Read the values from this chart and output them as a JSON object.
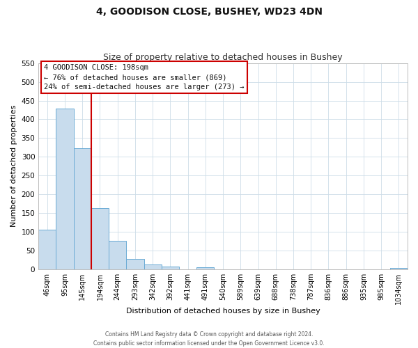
{
  "title": "4, GOODISON CLOSE, BUSHEY, WD23 4DN",
  "subtitle": "Size of property relative to detached houses in Bushey",
  "xlabel": "Distribution of detached houses by size in Bushey",
  "ylabel": "Number of detached properties",
  "bar_labels": [
    "46sqm",
    "95sqm",
    "145sqm",
    "194sqm",
    "244sqm",
    "293sqm",
    "342sqm",
    "392sqm",
    "441sqm",
    "491sqm",
    "540sqm",
    "589sqm",
    "639sqm",
    "688sqm",
    "738sqm",
    "787sqm",
    "836sqm",
    "886sqm",
    "935sqm",
    "985sqm",
    "1034sqm"
  ],
  "bar_values": [
    105,
    428,
    322,
    163,
    75,
    27,
    13,
    7,
    0,
    5,
    0,
    0,
    0,
    0,
    0,
    0,
    0,
    0,
    0,
    0,
    4
  ],
  "bar_color": "#c8dced",
  "bar_edge_color": "#6aaad4",
  "vline_color": "#cc0000",
  "ylim": [
    0,
    550
  ],
  "yticks": [
    0,
    50,
    100,
    150,
    200,
    250,
    300,
    350,
    400,
    450,
    500,
    550
  ],
  "annotation_title": "4 GOODISON CLOSE: 198sqm",
  "annotation_line1": "← 76% of detached houses are smaller (869)",
  "annotation_line2": "24% of semi-detached houses are larger (273) →",
  "footer_line1": "Contains HM Land Registry data © Crown copyright and database right 2024.",
  "footer_line2": "Contains public sector information licensed under the Open Government Licence v3.0.",
  "background_color": "#ffffff",
  "grid_color": "#cddde8",
  "title_fontsize": 10,
  "subtitle_fontsize": 9,
  "axis_label_fontsize": 8,
  "tick_fontsize": 7,
  "annotation_fontsize": 7.5,
  "footer_fontsize": 5.5
}
